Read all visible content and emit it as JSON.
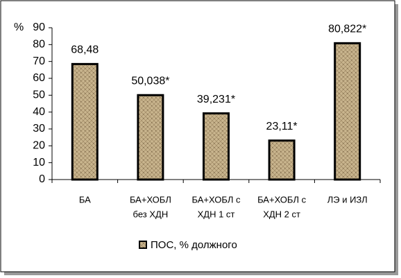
{
  "chart_data": {
    "type": "bar",
    "y_label": "%",
    "categories": [
      [
        "БА"
      ],
      [
        "БА+ХОБЛ",
        "без ХДН"
      ],
      [
        "БА+ХОБЛ с",
        "ХДН 1 ст"
      ],
      [
        "БА+ХОБЛ с",
        "ХДН 2 ст"
      ],
      [
        "ЛЭ и ИЗЛ"
      ]
    ],
    "series": [
      {
        "name": "ПОС, % должного",
        "color": "#c9b58e",
        "values": [
          68.48,
          50.038,
          39.231,
          23.11,
          80.822
        ],
        "value_labels": [
          "68,48",
          "50,038*",
          "39,231*",
          "23,11*",
          "80,822*"
        ]
      }
    ],
    "ylim": [
      0,
      90
    ],
    "yticks": [
      0,
      10,
      20,
      30,
      40,
      50,
      60,
      70,
      80,
      90
    ],
    "grid": false
  }
}
